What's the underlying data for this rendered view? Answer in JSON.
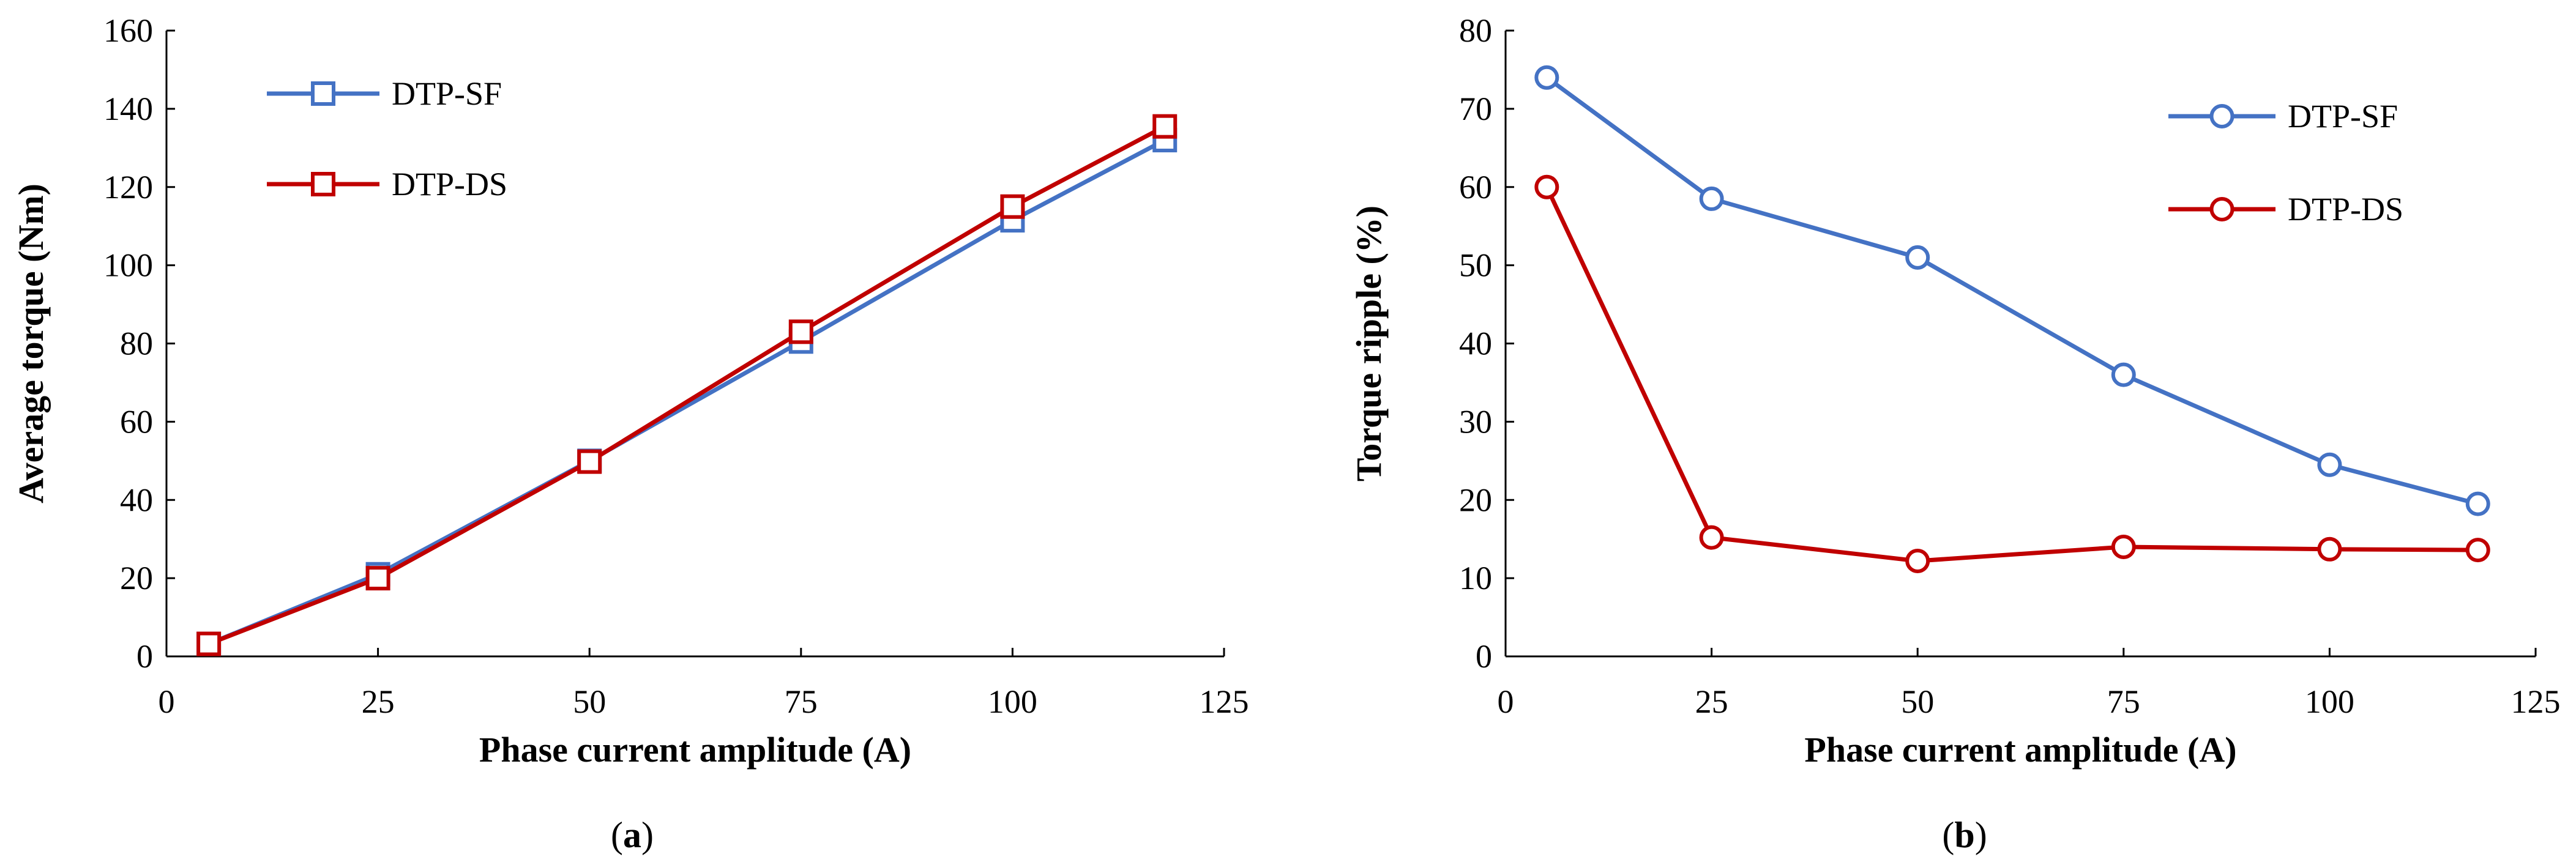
{
  "chart_data": [
    {
      "type": "line",
      "id": "a",
      "caption": "a",
      "xlabel": "Phase current amplitude (A)",
      "ylabel": "Average torque (Nm)",
      "xlim": [
        0,
        125
      ],
      "ylim": [
        0,
        160
      ],
      "xticks": [
        0,
        25,
        50,
        75,
        100,
        125
      ],
      "yticks": [
        0,
        20,
        40,
        60,
        80,
        100,
        120,
        140,
        160
      ],
      "marker": "square",
      "legend_position": "top-left",
      "grid": false,
      "x": [
        5,
        25,
        50,
        75,
        100,
        118
      ],
      "series": [
        {
          "name": "DTP-SF",
          "color": "#4472C4",
          "values": [
            3.2,
            21,
            50,
            80.5,
            111.5,
            132
          ]
        },
        {
          "name": "DTP-DS",
          "color": "#C00000",
          "values": [
            3.2,
            20,
            49.8,
            83,
            115,
            135.5
          ]
        }
      ]
    },
    {
      "type": "line",
      "id": "b",
      "caption": "b",
      "xlabel": "Phase current amplitude (A)",
      "ylabel": "Torque ripple (%)",
      "xlim": [
        0,
        125
      ],
      "ylim": [
        0,
        80
      ],
      "xticks": [
        0,
        25,
        50,
        75,
        100,
        125
      ],
      "yticks": [
        0,
        10,
        20,
        30,
        40,
        50,
        60,
        70,
        80
      ],
      "marker": "circle",
      "legend_position": "top-right",
      "grid": false,
      "x": [
        5,
        25,
        50,
        75,
        100,
        118
      ],
      "series": [
        {
          "name": "DTP-SF",
          "color": "#4472C4",
          "values": [
            74,
            58.5,
            51,
            36,
            24.5,
            19.5
          ]
        },
        {
          "name": "DTP-DS",
          "color": "#C00000",
          "values": [
            60,
            15.2,
            12.2,
            14,
            13.7,
            13.6
          ]
        }
      ]
    }
  ]
}
